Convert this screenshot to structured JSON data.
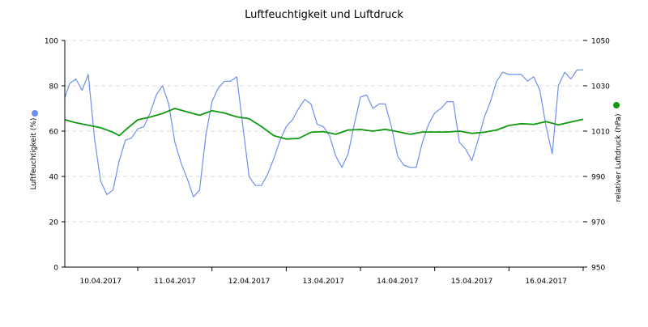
{
  "chart_data": {
    "type": "line",
    "title": "Luftfeuchtigkeit und Luftdruck",
    "xlim": [
      "2017-04-10T00:25",
      "2017-04-17T00:00"
    ],
    "x_tick_labels": [
      "10.04.2017",
      "11.04.2017",
      "12.04.2017",
      "13.04.2017",
      "14.04.2017",
      "15.04.2017",
      "16.04.2017"
    ],
    "grid": {
      "y": true,
      "x": false,
      "style": "dashed"
    },
    "axes": {
      "left": {
        "label": "Luftfeuchtigkeit (%)",
        "ylim": [
          0,
          100
        ],
        "ticks": [
          "0",
          "20",
          "40",
          "60",
          "80",
          "100"
        ]
      },
      "right": {
        "label": "relativer Luftdruck (hPa)",
        "ylim": [
          950,
          1050
        ],
        "ticks": [
          "950",
          "970",
          "990",
          "1010",
          "1030",
          "1050"
        ]
      }
    },
    "series": [
      {
        "axis": "left",
        "color": "#6f8ff0",
        "points": [
          [
            "2017-04-10T00:30",
            75
          ],
          [
            "2017-04-10T02:00",
            81
          ],
          [
            "2017-04-10T04:00",
            83
          ],
          [
            "2017-04-10T06:00",
            78
          ],
          [
            "2017-04-10T08:00",
            85
          ],
          [
            "2017-04-10T10:00",
            57
          ],
          [
            "2017-04-10T12:00",
            38
          ],
          [
            "2017-04-10T14:00",
            32
          ],
          [
            "2017-04-10T16:00",
            34
          ],
          [
            "2017-04-10T18:00",
            47
          ],
          [
            "2017-04-10T20:00",
            56
          ],
          [
            "2017-04-10T22:00",
            57
          ],
          [
            "2017-04-11T00:00",
            61
          ],
          [
            "2017-04-11T02:00",
            62
          ],
          [
            "2017-04-11T04:00",
            68
          ],
          [
            "2017-04-11T06:00",
            76
          ],
          [
            "2017-04-11T08:00",
            80
          ],
          [
            "2017-04-11T10:00",
            72
          ],
          [
            "2017-04-11T12:00",
            55
          ],
          [
            "2017-04-11T14:00",
            46
          ],
          [
            "2017-04-11T16:00",
            39
          ],
          [
            "2017-04-11T18:00",
            31
          ],
          [
            "2017-04-11T20:00",
            34
          ],
          [
            "2017-04-11T22:00",
            58
          ],
          [
            "2017-04-12T00:00",
            73
          ],
          [
            "2017-04-12T02:00",
            79
          ],
          [
            "2017-04-12T04:00",
            82
          ],
          [
            "2017-04-12T06:00",
            82
          ],
          [
            "2017-04-12T08:00",
            84
          ],
          [
            "2017-04-12T10:00",
            62
          ],
          [
            "2017-04-12T12:00",
            40
          ],
          [
            "2017-04-12T14:00",
            36
          ],
          [
            "2017-04-12T16:00",
            36
          ],
          [
            "2017-04-12T18:00",
            41
          ],
          [
            "2017-04-12T20:00",
            48
          ],
          [
            "2017-04-12T22:00",
            56
          ],
          [
            "2017-04-13T00:00",
            62
          ],
          [
            "2017-04-13T02:00",
            65
          ],
          [
            "2017-04-13T04:00",
            70
          ],
          [
            "2017-04-13T06:00",
            74
          ],
          [
            "2017-04-13T08:00",
            72
          ],
          [
            "2017-04-13T10:00",
            63
          ],
          [
            "2017-04-13T12:00",
            62
          ],
          [
            "2017-04-13T14:00",
            58
          ],
          [
            "2017-04-13T16:00",
            49
          ],
          [
            "2017-04-13T18:00",
            44
          ],
          [
            "2017-04-13T20:00",
            50
          ],
          [
            "2017-04-13T22:00",
            63
          ],
          [
            "2017-04-14T00:00",
            75
          ],
          [
            "2017-04-14T02:00",
            76
          ],
          [
            "2017-04-14T04:00",
            70
          ],
          [
            "2017-04-14T06:00",
            72
          ],
          [
            "2017-04-14T08:00",
            72
          ],
          [
            "2017-04-14T10:00",
            62
          ],
          [
            "2017-04-14T12:00",
            49
          ],
          [
            "2017-04-14T14:00",
            45
          ],
          [
            "2017-04-14T16:00",
            44
          ],
          [
            "2017-04-14T18:00",
            44
          ],
          [
            "2017-04-14T20:00",
            55
          ],
          [
            "2017-04-14T22:00",
            63
          ],
          [
            "2017-04-15T00:00",
            68
          ],
          [
            "2017-04-15T02:00",
            70
          ],
          [
            "2017-04-15T04:00",
            73
          ],
          [
            "2017-04-15T06:00",
            73
          ],
          [
            "2017-04-15T08:00",
            55
          ],
          [
            "2017-04-15T10:00",
            52
          ],
          [
            "2017-04-15T12:00",
            47
          ],
          [
            "2017-04-15T14:00",
            56
          ],
          [
            "2017-04-15T16:00",
            66
          ],
          [
            "2017-04-15T18:00",
            73
          ],
          [
            "2017-04-15T20:00",
            82
          ],
          [
            "2017-04-15T22:00",
            86
          ],
          [
            "2017-04-16T00:00",
            85
          ],
          [
            "2017-04-16T02:00",
            85
          ],
          [
            "2017-04-16T04:00",
            85
          ],
          [
            "2017-04-16T06:00",
            82
          ],
          [
            "2017-04-16T08:00",
            84
          ],
          [
            "2017-04-16T10:00",
            78
          ],
          [
            "2017-04-16T12:00",
            62
          ],
          [
            "2017-04-16T14:00",
            50
          ],
          [
            "2017-04-16T16:00",
            80
          ],
          [
            "2017-04-16T18:00",
            86
          ],
          [
            "2017-04-16T20:00",
            83
          ],
          [
            "2017-04-16T22:00",
            87
          ],
          [
            "2017-04-17T00:00",
            87
          ]
        ]
      },
      {
        "axis": "right",
        "color": "#119911",
        "points": [
          [
            "2017-04-10T00:30",
            1015
          ],
          [
            "2017-04-10T04:00",
            1013.7
          ],
          [
            "2017-04-10T08:00",
            1012.6
          ],
          [
            "2017-04-10T12:00",
            1011.5
          ],
          [
            "2017-04-10T16:00",
            1009.5
          ],
          [
            "2017-04-10T18:00",
            1008
          ],
          [
            "2017-04-10T20:00",
            1010.5
          ],
          [
            "2017-04-11T00:00",
            1015
          ],
          [
            "2017-04-11T04:00",
            1016.2
          ],
          [
            "2017-04-11T08:00",
            1017.8
          ],
          [
            "2017-04-11T12:00",
            1020
          ],
          [
            "2017-04-11T16:00",
            1018.5
          ],
          [
            "2017-04-11T20:00",
            1017
          ],
          [
            "2017-04-12T00:00",
            1019
          ],
          [
            "2017-04-12T04:00",
            1018
          ],
          [
            "2017-04-12T08:00",
            1016.3
          ],
          [
            "2017-04-12T12:00",
            1015.5
          ],
          [
            "2017-04-12T16:00",
            1012
          ],
          [
            "2017-04-12T20:00",
            1008
          ],
          [
            "2017-04-13T00:00",
            1006.5
          ],
          [
            "2017-04-13T04:00",
            1006.8
          ],
          [
            "2017-04-13T08:00",
            1009.5
          ],
          [
            "2017-04-13T12:00",
            1009.8
          ],
          [
            "2017-04-13T16:00",
            1008.6
          ],
          [
            "2017-04-13T20:00",
            1010.5
          ],
          [
            "2017-04-14T00:00",
            1010.7
          ],
          [
            "2017-04-14T04:00",
            1010
          ],
          [
            "2017-04-14T08:00",
            1010.8
          ],
          [
            "2017-04-14T12:00",
            1009.8
          ],
          [
            "2017-04-14T16:00",
            1008.6
          ],
          [
            "2017-04-14T20:00",
            1009.6
          ],
          [
            "2017-04-15T00:00",
            1009.6
          ],
          [
            "2017-04-15T04:00",
            1009.6
          ],
          [
            "2017-04-15T08:00",
            1010
          ],
          [
            "2017-04-15T12:00",
            1009
          ],
          [
            "2017-04-15T16:00",
            1009.5
          ],
          [
            "2017-04-15T20:00",
            1010.5
          ],
          [
            "2017-04-16T00:00",
            1012.5
          ],
          [
            "2017-04-16T04:00",
            1013.3
          ],
          [
            "2017-04-16T08:00",
            1013
          ],
          [
            "2017-04-16T12:00",
            1014.2
          ],
          [
            "2017-04-16T16:00",
            1012.8
          ],
          [
            "2017-04-16T20:00",
            1014
          ],
          [
            "2017-04-17T00:00",
            1015.2
          ]
        ]
      }
    ]
  }
}
